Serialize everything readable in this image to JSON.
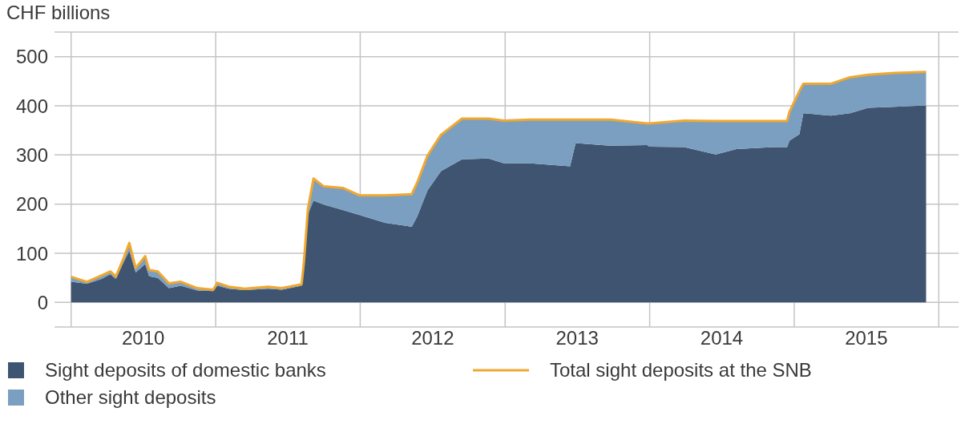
{
  "chart_data": {
    "type": "area",
    "ylabel": "CHF billions",
    "stacked": true,
    "grid": true,
    "legend": "bottom",
    "x": [
      "2010-01-01",
      "2010-02-10",
      "2010-03-19",
      "2010-04-10",
      "2010-04-24",
      "2010-05-14",
      "2010-05-28",
      "2010-06-13",
      "2010-07-07",
      "2010-07-17",
      "2010-08-08",
      "2010-09-05",
      "2010-10-05",
      "2010-11-16",
      "2010-12-26",
      "2011-01-05",
      "2011-02-03",
      "2011-03-15",
      "2011-05-14",
      "2011-06-17",
      "2011-08-06",
      "2011-08-12",
      "2011-08-22",
      "2011-09-05",
      "2011-10-01",
      "2011-11-18",
      "2011-12-30",
      "2012-03-04",
      "2012-05-10",
      "2012-05-24",
      "2012-06-19",
      "2012-07-23",
      "2012-09-14",
      "2012-11-20",
      "2012-12-29",
      "2013-03-06",
      "2013-06-14",
      "2013-06-28",
      "2013-09-22",
      "2013-12-25",
      "2014-01-01",
      "2014-03-29",
      "2014-06-17",
      "2014-08-08",
      "2014-11-10",
      "2014-12-14",
      "2014-12-20",
      "2015-01-14",
      "2015-01-24",
      "2015-04-04",
      "2015-05-22",
      "2015-07-07",
      "2015-09-11",
      "2015-11-30"
    ],
    "series": [
      {
        "name": "Sight deposits of domestic banks",
        "color": "#3f5470",
        "values": [
          42,
          38,
          48,
          57,
          48,
          83,
          105,
          61,
          78,
          53,
          50,
          29,
          34,
          24,
          23,
          34,
          28,
          25,
          28,
          26,
          34,
          78,
          180,
          207,
          199,
          188,
          178,
          162,
          154,
          175,
          228,
          267,
          291,
          293,
          283,
          283,
          277,
          324,
          319,
          320,
          317,
          316,
          301,
          312,
          316,
          316,
          329,
          342,
          385,
          380,
          385,
          396,
          398,
          401
        ]
      },
      {
        "name": "Other sight deposits",
        "color": "#7a9fc0",
        "values": [
          10,
          4,
          7,
          6,
          5,
          8,
          16,
          9,
          16,
          13,
          13,
          10,
          8,
          5,
          3,
          6,
          4,
          3,
          4,
          3,
          3,
          5,
          11,
          45,
          37,
          45,
          40,
          56,
          66,
          69,
          71,
          74,
          83,
          81,
          87,
          89,
          95,
          48,
          53,
          44,
          47,
          54,
          68,
          57,
          53,
          53,
          59,
          88,
          60,
          65,
          73,
          67,
          69,
          68
        ]
      },
      {
        "name": "Total sight deposits at the SNB",
        "type": "line",
        "color": "#f0a830",
        "values": [
          52,
          42,
          55,
          63,
          53,
          91,
          121,
          70,
          94,
          66,
          63,
          39,
          42,
          29,
          26,
          40,
          32,
          28,
          32,
          29,
          37,
          83,
          191,
          252,
          236,
          233,
          218,
          218,
          220,
          244,
          299,
          341,
          374,
          374,
          370,
          372,
          372,
          372,
          372,
          364,
          364,
          370,
          369,
          369,
          369,
          369,
          388,
          430,
          445,
          445,
          458,
          463,
          467,
          469
        ]
      }
    ],
    "xlim": [
      "2009-11-20",
      "2016-02-20"
    ],
    "xticks": [
      {
        "value": "2010-01-01",
        "label": null
      },
      {
        "value": "2010-07-02",
        "label": "2010"
      },
      {
        "value": "2011-01-01",
        "label": null
      },
      {
        "value": "2011-07-02",
        "label": "2011"
      },
      {
        "value": "2012-01-01",
        "label": null
      },
      {
        "value": "2012-07-02",
        "label": "2012"
      },
      {
        "value": "2013-01-01",
        "label": null
      },
      {
        "value": "2013-07-02",
        "label": "2013"
      },
      {
        "value": "2014-01-01",
        "label": null
      },
      {
        "value": "2014-07-02",
        "label": "2014"
      },
      {
        "value": "2015-01-01",
        "label": null
      },
      {
        "value": "2015-07-02",
        "label": "2015"
      },
      {
        "value": "2016-01-01",
        "label": null
      }
    ],
    "ylim": [
      -50,
      550
    ],
    "yticks": [
      0,
      100,
      200,
      300,
      400,
      500
    ]
  }
}
